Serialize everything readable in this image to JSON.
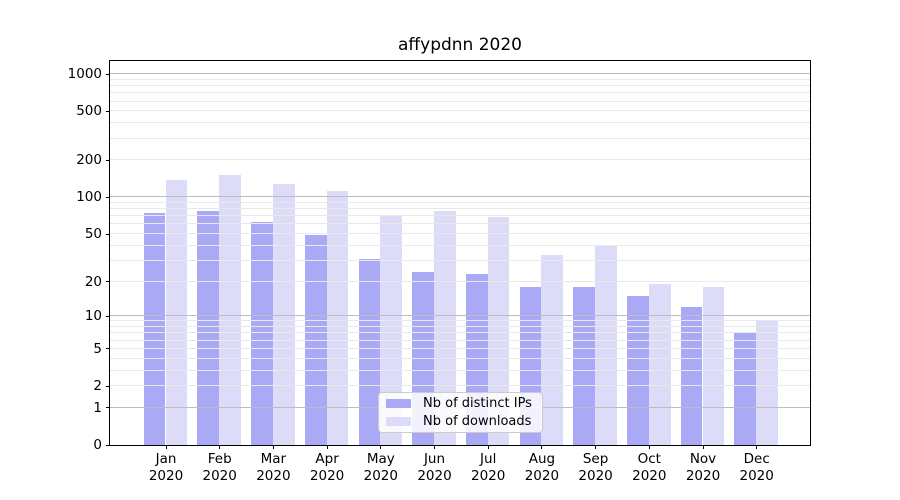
{
  "chart_data": {
    "type": "bar",
    "title": "affypdnn 2020",
    "categories": [
      "Jan",
      "Feb",
      "Mar",
      "Apr",
      "May",
      "Jun",
      "Jul",
      "Aug",
      "Sep",
      "Oct",
      "Nov",
      "Dec"
    ],
    "year": "2020",
    "series": [
      {
        "name": "Nb of distinct IPs",
        "color": "#a9a9f5",
        "values": [
          74,
          77,
          62,
          49,
          31,
          24,
          23,
          18,
          18,
          15,
          12,
          7
        ]
      },
      {
        "name": "Nb of downloads",
        "color": "#dcdcf8",
        "values": [
          137,
          152,
          127,
          112,
          71,
          76,
          68,
          33,
          40,
          19,
          18,
          9
        ]
      }
    ],
    "yscale": "log1p",
    "yticks": [
      0,
      1,
      2,
      5,
      10,
      20,
      50,
      100,
      200,
      500,
      1000
    ],
    "ylim": [
      0,
      1280
    ],
    "xlabel": "",
    "ylabel": "",
    "grid": {
      "axis": "y",
      "major_color": "#bdbdbd",
      "minor_color": "#e9e9e9"
    },
    "legend_position": "lower center"
  }
}
